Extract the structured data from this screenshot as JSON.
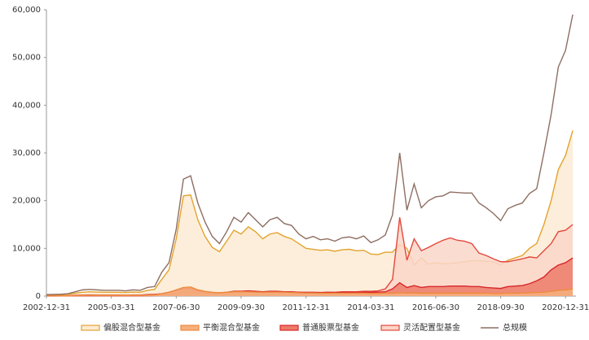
{
  "chart_data": {
    "type": "area",
    "categories": [
      "2002-12-31",
      null,
      null,
      null,
      null,
      null,
      null,
      null,
      null,
      "2005-03-31",
      null,
      null,
      null,
      null,
      null,
      null,
      null,
      null,
      "2007-06-30",
      null,
      null,
      null,
      null,
      null,
      null,
      null,
      null,
      "2009-09-30",
      null,
      null,
      null,
      null,
      null,
      null,
      null,
      null,
      "2011-12-31",
      null,
      null,
      null,
      null,
      null,
      null,
      null,
      null,
      "2014-03-31",
      null,
      null,
      null,
      null,
      null,
      null,
      null,
      null,
      "2016-06-30",
      null,
      null,
      null,
      null,
      null,
      null,
      null,
      null,
      "2018-09-30",
      null,
      null,
      null,
      null,
      null,
      null,
      null,
      null,
      "2020-12-31",
      null
    ],
    "ylim": [
      0,
      60000
    ],
    "yticks": [
      0,
      {
        "value": 10000,
        "label": "10,000"
      },
      {
        "value": 20000,
        "label": "20,000"
      },
      {
        "value": 30000,
        "label": "30,000"
      },
      {
        "value": 40000,
        "label": "40,000"
      },
      {
        "value": 50000,
        "label": "50,000"
      },
      {
        "value": 60000,
        "label": "60,000"
      }
    ],
    "series": [
      {
        "name": "偏股混合型基金",
        "color": "#e3a32e",
        "fill": "#fcebd3",
        "values": [
          200,
          250,
          300,
          350,
          600,
          800,
          900,
          850,
          800,
          800,
          800,
          750,
          850,
          800,
          1200,
          1400,
          3500,
          5500,
          12000,
          21000,
          21200,
          16000,
          12500,
          10200,
          9300,
          11500,
          13800,
          13000,
          14500,
          13500,
          12000,
          13000,
          13300,
          12500,
          12000,
          11000,
          10000,
          9800,
          9600,
          9700,
          9400,
          9700,
          9800,
          9500,
          9600,
          8800,
          8700,
          9200,
          9200,
          10800,
          10000,
          6500,
          8000,
          6700,
          7000,
          6800,
          6800,
          7000,
          7200,
          7400,
          7400,
          7300,
          7200,
          6500,
          7500,
          8000,
          8500,
          10000,
          11000,
          15000,
          20000,
          26500,
          29500,
          34700
        ]
      },
      {
        "name": "平衡混合型基金",
        "color": "#ee8a3c",
        "fill": "#f5b07c",
        "values": [
          30,
          40,
          50,
          60,
          100,
          150,
          150,
          150,
          150,
          150,
          150,
          150,
          150,
          150,
          200,
          250,
          500,
          800,
          1300,
          1800,
          1900,
          1300,
          1000,
          800,
          700,
          800,
          900,
          900,
          900,
          850,
          800,
          850,
          850,
          800,
          750,
          700,
          650,
          650,
          600,
          600,
          600,
          600,
          600,
          600,
          600,
          550,
          550,
          600,
          600,
          700,
          650,
          650,
          600,
          600,
          600,
          600,
          600,
          600,
          600,
          600,
          600,
          600,
          550,
          550,
          600,
          600,
          650,
          700,
          750,
          800,
          1000,
          1200,
          1300,
          1500
        ]
      },
      {
        "name": "普通股票型基金",
        "color": "#d8262b",
        "fill": "#ec7b68",
        "values": [
          50,
          60,
          70,
          80,
          150,
          200,
          220,
          200,
          200,
          200,
          200,
          180,
          200,
          200,
          300,
          350,
          500,
          800,
          1200,
          1500,
          1600,
          1100,
          900,
          700,
          700,
          800,
          1000,
          1000,
          1100,
          1000,
          900,
          1000,
          1000,
          900,
          900,
          800,
          800,
          800,
          750,
          800,
          750,
          800,
          800,
          800,
          850,
          800,
          850,
          900,
          1500,
          2800,
          1800,
          2200,
          1800,
          2000,
          2000,
          2000,
          2100,
          2100,
          2100,
          2000,
          2000,
          1800,
          1700,
          1600,
          2000,
          2100,
          2200,
          2600,
          3200,
          4000,
          5500,
          6500,
          7000,
          8000
        ]
      },
      {
        "name": "灵活配置型基金",
        "color": "#e4473b",
        "fill": "#fad6c9",
        "values": [
          20,
          20,
          30,
          30,
          50,
          60,
          60,
          60,
          60,
          60,
          60,
          60,
          60,
          60,
          80,
          100,
          200,
          300,
          600,
          800,
          900,
          700,
          600,
          500,
          500,
          600,
          800,
          800,
          900,
          900,
          800,
          900,
          900,
          800,
          800,
          800,
          700,
          700,
          700,
          800,
          800,
          900,
          900,
          900,
          1000,
          1000,
          1100,
          1500,
          3500,
          16500,
          7500,
          12000,
          9500,
          10200,
          11000,
          11700,
          12200,
          11700,
          11500,
          11000,
          9000,
          8500,
          7800,
          7200,
          7200,
          7500,
          7800,
          8200,
          8000,
          9500,
          11000,
          13500,
          13800,
          15000
        ]
      },
      {
        "name": "总规模",
        "color": "#8e6e62",
        "values": [
          300,
          350,
          400,
          500,
          900,
          1300,
          1400,
          1300,
          1200,
          1200,
          1200,
          1100,
          1300,
          1200,
          1800,
          2000,
          5000,
          7000,
          14000,
          24500,
          25200,
          19500,
          15500,
          12500,
          11000,
          13500,
          16500,
          15500,
          17500,
          16000,
          14500,
          16000,
          16500,
          15200,
          14800,
          13000,
          12000,
          12500,
          11800,
          12000,
          11500,
          12200,
          12400,
          12000,
          12600,
          11200,
          11800,
          12800,
          17000,
          30000,
          18000,
          23500,
          18500,
          20000,
          20800,
          21000,
          21800,
          21700,
          21600,
          21600,
          19500,
          18500,
          17300,
          15800,
          18300,
          19000,
          19500,
          21500,
          22500,
          30000,
          38000,
          48000,
          51500,
          59000
        ]
      }
    ]
  }
}
